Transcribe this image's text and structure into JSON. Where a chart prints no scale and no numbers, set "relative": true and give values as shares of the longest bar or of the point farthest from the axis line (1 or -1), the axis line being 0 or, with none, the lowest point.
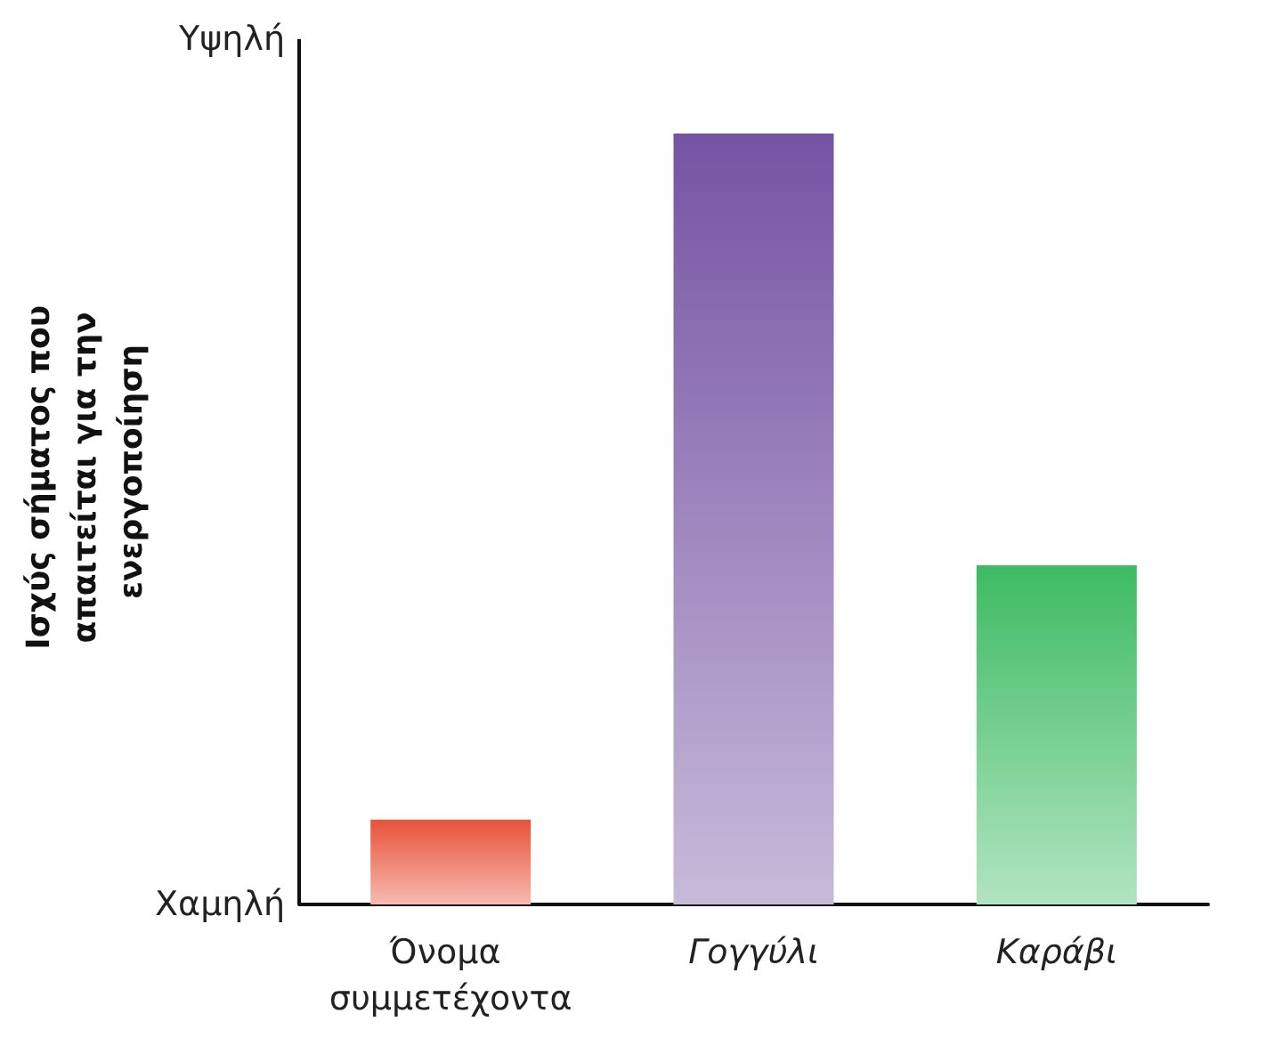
{
  "chart_data": {
    "type": "bar",
    "ylabel": "Ισχύς σήματος που απαιτείται για την ενεργοποίηση",
    "categories": [
      "Όνομα συμμετέχοντα",
      "Γογγύλι",
      "Καράβι"
    ],
    "values": [
      0.11,
      1,
      0.44
    ],
    "colors": [
      "#e8523a",
      "#7553a3",
      "#3dbb62"
    ],
    "relative": true,
    "annotations": [
      "Υψηλή",
      "Χαμηλή"
    ]
  }
}
